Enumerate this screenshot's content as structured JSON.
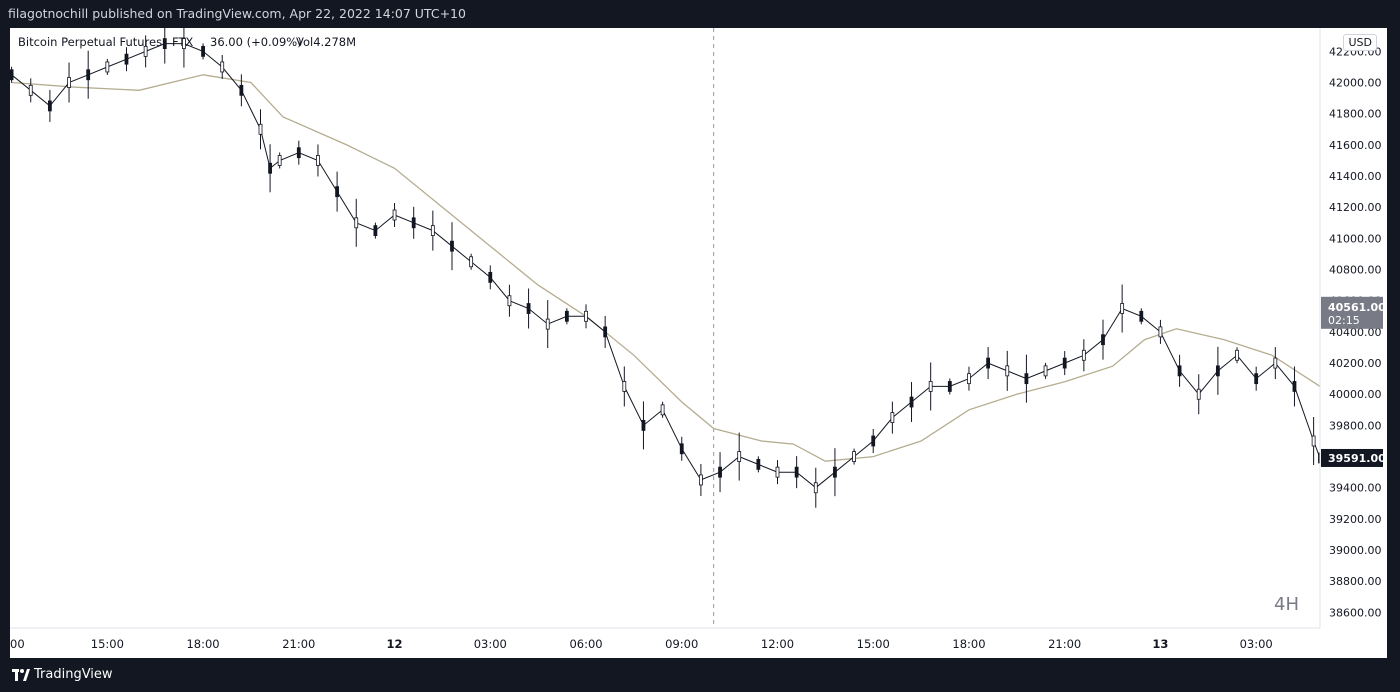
{
  "header": {
    "text": "filagotnochill published on TradingView.com, Apr 22, 2022 14:07 UTC+10"
  },
  "legend": {
    "symbol": "Bitcoin Perpetual Futures",
    "exchange": "FTX",
    "change": "36.00 (+0.09%)",
    "volume": "Vol4.278M"
  },
  "unit_label": "USD",
  "interval_label": "4H",
  "price_tag": {
    "value": "40561.00",
    "countdown": "02:15"
  },
  "last_price_tag": {
    "value": "39591.00"
  },
  "footer": {
    "brand": "TradingView"
  },
  "colors": {
    "background": "#ffffff",
    "frame": "#131722",
    "candle": "#131722",
    "ma_line": "#b5ad8f",
    "price_tag_bg": "#787b86",
    "last_price_bg": "#131722",
    "crosshair": "#9598a1"
  },
  "chart_data": {
    "type": "candlestick",
    "title": "",
    "ylim": [
      38500,
      42350
    ],
    "y_ticks": [
      "42200.00",
      "42000.00",
      "41800.00",
      "41600.00",
      "41400.00",
      "41200.00",
      "41000.00",
      "40800.00",
      "40600.00",
      "40400.00",
      "40200.00",
      "40000.00",
      "39800.00",
      "39600.00",
      "39400.00",
      "39200.00",
      "39000.00",
      "38800.00",
      "38600.00"
    ],
    "x_ticks": [
      "00",
      "15:00",
      "18:00",
      "21:00",
      "12",
      "03:00",
      "06:00",
      "09:00",
      "12:00",
      "15:00",
      "18:00",
      "21:00",
      "13",
      "03:00"
    ],
    "x_tick_hours": [
      12,
      15,
      18,
      21,
      24,
      27,
      30,
      33,
      36,
      39,
      42,
      45,
      48,
      51
    ],
    "x_range_hours": [
      11.95,
      53.0
    ],
    "crosshair_hour": 34.0,
    "series": [
      {
        "name": "Price",
        "style": "close-path-approx",
        "points": [
          [
            12.0,
            42050
          ],
          [
            12.6,
            41950
          ],
          [
            13.2,
            41850
          ],
          [
            13.8,
            42000
          ],
          [
            14.4,
            42050
          ],
          [
            15.0,
            42100
          ],
          [
            15.6,
            42150
          ],
          [
            16.2,
            42200
          ],
          [
            16.8,
            42250
          ],
          [
            17.4,
            42250
          ],
          [
            18.0,
            42200
          ],
          [
            18.6,
            42100
          ],
          [
            19.2,
            41950
          ],
          [
            19.8,
            41700
          ],
          [
            20.1,
            41450
          ],
          [
            20.4,
            41500
          ],
          [
            21.0,
            41550
          ],
          [
            21.6,
            41500
          ],
          [
            22.2,
            41300
          ],
          [
            22.8,
            41100
          ],
          [
            23.4,
            41050
          ],
          [
            24.0,
            41150
          ],
          [
            24.6,
            41100
          ],
          [
            25.2,
            41050
          ],
          [
            25.8,
            40950
          ],
          [
            26.4,
            40850
          ],
          [
            27.0,
            40750
          ],
          [
            27.6,
            40600
          ],
          [
            28.2,
            40550
          ],
          [
            28.8,
            40450
          ],
          [
            29.4,
            40500
          ],
          [
            30.0,
            40500
          ],
          [
            30.6,
            40400
          ],
          [
            31.2,
            40050
          ],
          [
            31.8,
            39800
          ],
          [
            32.4,
            39900
          ],
          [
            33.0,
            39650
          ],
          [
            33.6,
            39450
          ],
          [
            34.2,
            39500
          ],
          [
            34.8,
            39600
          ],
          [
            35.4,
            39550
          ],
          [
            36.0,
            39500
          ],
          [
            36.6,
            39500
          ],
          [
            37.2,
            39400
          ],
          [
            37.8,
            39500
          ],
          [
            38.4,
            39600
          ],
          [
            39.0,
            39700
          ],
          [
            39.6,
            39850
          ],
          [
            40.2,
            39950
          ],
          [
            40.8,
            40050
          ],
          [
            41.4,
            40050
          ],
          [
            42.0,
            40100
          ],
          [
            42.6,
            40200
          ],
          [
            43.2,
            40150
          ],
          [
            43.8,
            40100
          ],
          [
            44.4,
            40150
          ],
          [
            45.0,
            40200
          ],
          [
            45.6,
            40250
          ],
          [
            46.2,
            40350
          ],
          [
            46.8,
            40550
          ],
          [
            47.4,
            40500
          ],
          [
            48.0,
            40400
          ],
          [
            48.6,
            40150
          ],
          [
            49.2,
            40000
          ],
          [
            49.8,
            40150
          ],
          [
            50.4,
            40250
          ],
          [
            51.0,
            40100
          ],
          [
            51.6,
            40200
          ],
          [
            52.2,
            40050
          ],
          [
            52.8,
            39700
          ],
          [
            53.0,
            39591
          ]
        ]
      },
      {
        "name": "Moving average",
        "points": [
          [
            12.0,
            42000
          ],
          [
            14.0,
            41970
          ],
          [
            16.0,
            41950
          ],
          [
            18.0,
            42050
          ],
          [
            19.5,
            42000
          ],
          [
            20.5,
            41780
          ],
          [
            22.5,
            41600
          ],
          [
            24.0,
            41450
          ],
          [
            25.5,
            41200
          ],
          [
            27.0,
            40950
          ],
          [
            28.5,
            40700
          ],
          [
            30.0,
            40500
          ],
          [
            31.5,
            40250
          ],
          [
            33.0,
            39950
          ],
          [
            34.0,
            39780
          ],
          [
            35.5,
            39700
          ],
          [
            36.5,
            39680
          ],
          [
            37.5,
            39570
          ],
          [
            39.0,
            39600
          ],
          [
            40.5,
            39700
          ],
          [
            42.0,
            39900
          ],
          [
            43.5,
            40000
          ],
          [
            45.0,
            40080
          ],
          [
            46.5,
            40180
          ],
          [
            47.5,
            40350
          ],
          [
            48.5,
            40420
          ],
          [
            50.0,
            40350
          ],
          [
            51.5,
            40250
          ],
          [
            53.0,
            40050
          ]
        ]
      }
    ],
    "y_unit": "USD"
  }
}
